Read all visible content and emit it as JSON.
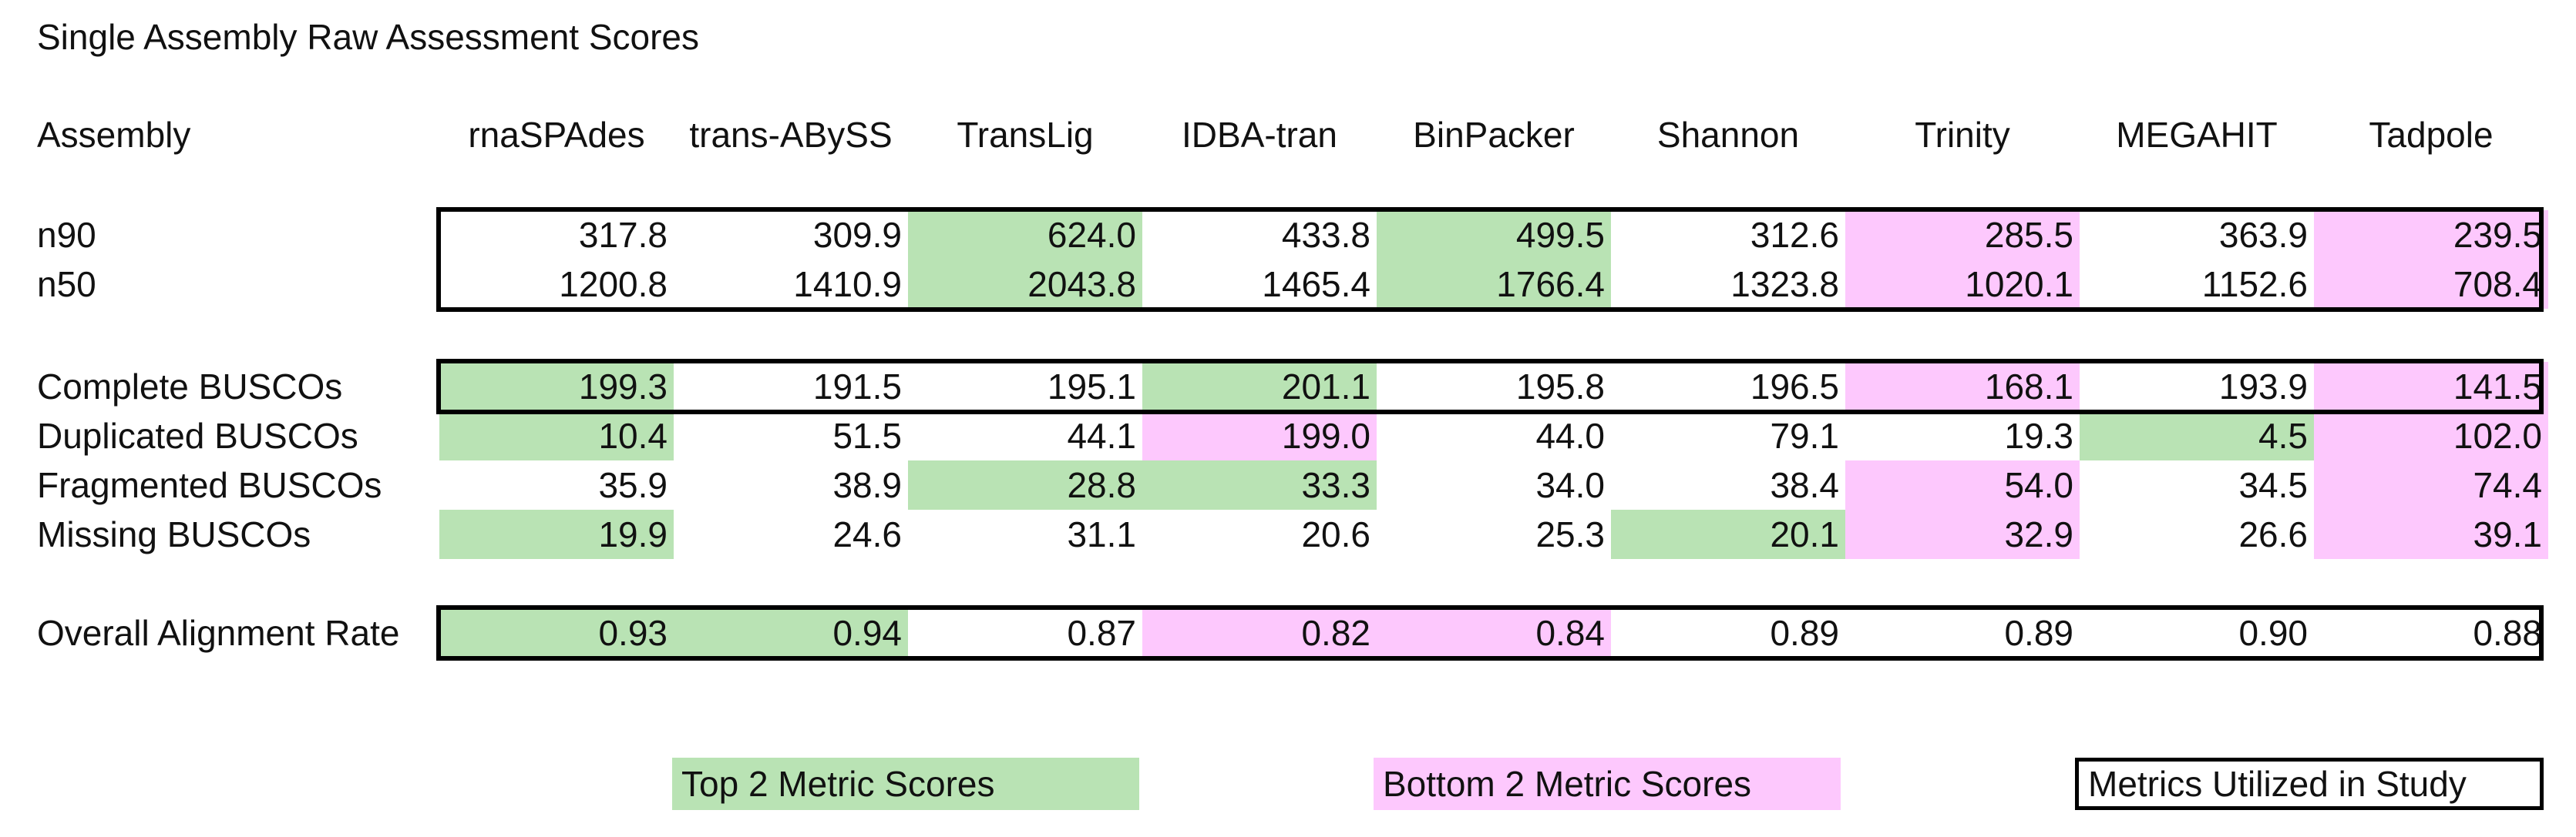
{
  "title": "Single Assembly Raw Assessment Scores",
  "header": {
    "row_label": "Assembly",
    "assemblers": [
      "rnaSPAdes",
      "trans-ABySS",
      "TransLig",
      "IDBA-tran",
      "BinPacker",
      "Shannon",
      "Trinity",
      "MEGAHIT",
      "Tadpole"
    ]
  },
  "rows": [
    {
      "label": "n90",
      "values": [
        "317.8",
        "309.9",
        "624.0",
        "433.8",
        "499.5",
        "312.6",
        "285.5",
        "363.9",
        "239.5"
      ],
      "highlight": [
        "",
        "",
        "top",
        "",
        "top",
        "",
        "bottom",
        "",
        "bottom"
      ]
    },
    {
      "label": "n50",
      "values": [
        "1200.8",
        "1410.9",
        "2043.8",
        "1465.4",
        "1766.4",
        "1323.8",
        "1020.1",
        "1152.6",
        "708.4"
      ],
      "highlight": [
        "",
        "",
        "top",
        "",
        "top",
        "",
        "bottom",
        "",
        "bottom"
      ]
    },
    {
      "label": "Complete BUSCOs",
      "values": [
        "199.3",
        "191.5",
        "195.1",
        "201.1",
        "195.8",
        "196.5",
        "168.1",
        "193.9",
        "141.5"
      ],
      "highlight": [
        "top",
        "",
        "",
        "top",
        "",
        "",
        "bottom",
        "",
        "bottom"
      ]
    },
    {
      "label": "Duplicated BUSCOs",
      "values": [
        "10.4",
        "51.5",
        "44.1",
        "199.0",
        "44.0",
        "79.1",
        "19.3",
        "4.5",
        "102.0"
      ],
      "highlight": [
        "top",
        "",
        "",
        "bottom",
        "",
        "",
        "",
        "top",
        "bottom"
      ]
    },
    {
      "label": "Fragmented BUSCOs",
      "values": [
        "35.9",
        "38.9",
        "28.8",
        "33.3",
        "34.0",
        "38.4",
        "54.0",
        "34.5",
        "74.4"
      ],
      "highlight": [
        "",
        "",
        "top",
        "top",
        "",
        "",
        "bottom",
        "",
        "bottom"
      ]
    },
    {
      "label": "Missing BUSCOs",
      "values": [
        "19.9",
        "24.6",
        "31.1",
        "20.6",
        "25.3",
        "20.1",
        "32.9",
        "26.6",
        "39.1"
      ],
      "highlight": [
        "top",
        "",
        "",
        "",
        "",
        "top",
        "bottom",
        "",
        "bottom"
      ]
    },
    {
      "label": "Overall Alignment Rate",
      "values": [
        "0.93",
        "0.94",
        "0.87",
        "0.82",
        "0.84",
        "0.89",
        "0.89",
        "0.90",
        "0.88"
      ],
      "highlight": [
        "top",
        "top",
        "",
        "bottom",
        "bottom",
        "",
        "",
        "",
        ""
      ]
    }
  ],
  "legend": {
    "top2": "Top 2 Metric Scores",
    "bottom2": "Bottom 2 Metric Scores",
    "utilized": "Metrics Utilized in Study"
  },
  "colors": {
    "top2": "#b9e3b4",
    "bottom2": "#fdc8fd",
    "border": "#000000"
  }
}
